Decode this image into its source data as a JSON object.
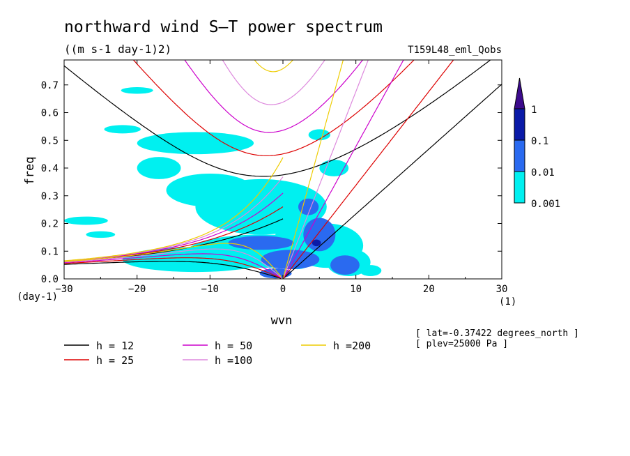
{
  "chart_data": {
    "type": "heatmap",
    "title": "northward wind S—T power spectrum",
    "subtitle": "((m s-1 day-1)2)",
    "run_label": "T159L48_eml_Qobs",
    "xlabel": "wvn",
    "ylabel": "freq",
    "x_unit": "(1)",
    "y_unit": "(day-1)",
    "xlim": [
      -30,
      30
    ],
    "ylim": [
      0,
      0.79
    ],
    "xticks": [
      -30,
      -20,
      -10,
      0,
      10,
      20,
      30
    ],
    "yticks": [
      0.0,
      0.1,
      0.2,
      0.3,
      0.4,
      0.5,
      0.6,
      0.7
    ],
    "colorbar": {
      "levels": [
        "1",
        "0.1",
        "0.01",
        "0.001"
      ],
      "colors": {
        "over": "#3c0a8c",
        "l3": "#0a1aa8",
        "l2": "#2a6af0",
        "l1": "#00f0f0"
      }
    },
    "dispersion_curves": [
      {
        "name": "h = 12",
        "h": 12,
        "color": "#000000"
      },
      {
        "name": "h = 25",
        "h": 25,
        "color": "#dd0000"
      },
      {
        "name": "h = 50",
        "h": 50,
        "color": "#cc00cc"
      },
      {
        "name": "h =100",
        "h": 100,
        "color": "#dd88dd"
      },
      {
        "name": "h =200",
        "h": 200,
        "color": "#eecc00"
      }
    ],
    "info_lines": [
      "[ lat=-0.37422 degrees_north ]",
      "[ plev=25000 Pa ]"
    ],
    "power_regions": [
      {
        "level": 1,
        "x": 2,
        "y": 0.13,
        "rx": 3.2,
        "ry": 0.095
      },
      {
        "level": 1,
        "x": -3,
        "y": 0.1,
        "rx": 10,
        "ry": 0.06
      },
      {
        "level": 1,
        "x": -12,
        "y": 0.07,
        "rx": 10,
        "ry": 0.045
      },
      {
        "level": 1,
        "x": 6,
        "y": 0.12,
        "rx": 5,
        "ry": 0.08
      },
      {
        "level": 1,
        "x": -3,
        "y": 0.26,
        "rx": 9,
        "ry": 0.1
      },
      {
        "level": 1,
        "x": -10,
        "y": 0.32,
        "rx": 6,
        "ry": 0.06
      },
      {
        "level": 1,
        "x": -12,
        "y": 0.49,
        "rx": 8,
        "ry": 0.04
      },
      {
        "level": 1,
        "x": -17,
        "y": 0.4,
        "rx": 3,
        "ry": 0.04
      },
      {
        "level": 1,
        "x": 9,
        "y": 0.06,
        "rx": 3,
        "ry": 0.05
      },
      {
        "level": 1,
        "x": -27,
        "y": 0.21,
        "rx": 3,
        "ry": 0.015
      },
      {
        "level": 1,
        "x": -22,
        "y": 0.54,
        "rx": 2.5,
        "ry": 0.015
      },
      {
        "level": 1,
        "x": -20,
        "y": 0.68,
        "rx": 2.2,
        "ry": 0.012
      },
      {
        "level": 1,
        "x": -25,
        "y": 0.16,
        "rx": 2,
        "ry": 0.012
      },
      {
        "level": 1,
        "x": 12,
        "y": 0.03,
        "rx": 1.5,
        "ry": 0.02
      },
      {
        "level": 1,
        "x": 7,
        "y": 0.4,
        "rx": 2,
        "ry": 0.03
      },
      {
        "level": 1,
        "x": 5,
        "y": 0.52,
        "rx": 1.5,
        "ry": 0.02
      },
      {
        "level": 2,
        "x": 5,
        "y": 0.16,
        "rx": 2.2,
        "ry": 0.06
      },
      {
        "level": 2,
        "x": -3,
        "y": 0.13,
        "rx": 4.5,
        "ry": 0.025
      },
      {
        "level": 2,
        "x": 1,
        "y": 0.07,
        "rx": 4,
        "ry": 0.035
      },
      {
        "level": 2,
        "x": 8.5,
        "y": 0.05,
        "rx": 2,
        "ry": 0.035
      },
      {
        "level": 2,
        "x": 3.5,
        "y": 0.26,
        "rx": 1.4,
        "ry": 0.03
      },
      {
        "level": 2,
        "x": -1,
        "y": 0.02,
        "rx": 2.2,
        "ry": 0.018
      },
      {
        "level": 3,
        "x": 4.6,
        "y": 0.13,
        "rx": 0.6,
        "ry": 0.012
      }
    ]
  }
}
